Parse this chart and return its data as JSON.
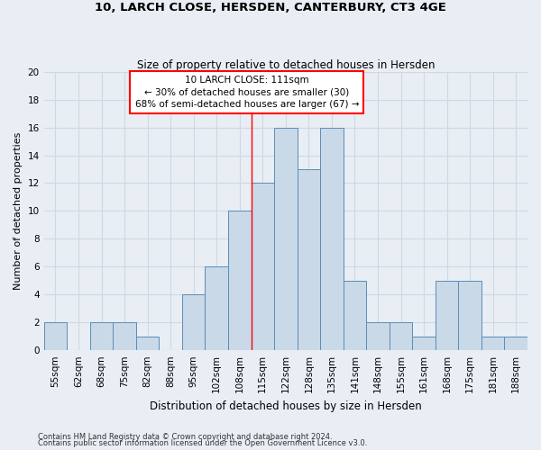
{
  "title1": "10, LARCH CLOSE, HERSDEN, CANTERBURY, CT3 4GE",
  "title2": "Size of property relative to detached houses in Hersden",
  "xlabel": "Distribution of detached houses by size in Hersden",
  "ylabel": "Number of detached properties",
  "footer1": "Contains HM Land Registry data © Crown copyright and database right 2024.",
  "footer2": "Contains public sector information licensed under the Open Government Licence v3.0.",
  "bin_labels": [
    "55sqm",
    "62sqm",
    "68sqm",
    "75sqm",
    "82sqm",
    "88sqm",
    "95sqm",
    "102sqm",
    "108sqm",
    "115sqm",
    "122sqm",
    "128sqm",
    "135sqm",
    "141sqm",
    "148sqm",
    "155sqm",
    "161sqm",
    "168sqm",
    "175sqm",
    "181sqm",
    "188sqm"
  ],
  "bar_values": [
    2,
    0,
    2,
    2,
    1,
    0,
    4,
    6,
    10,
    12,
    16,
    13,
    16,
    5,
    2,
    2,
    1,
    5,
    5,
    1,
    1
  ],
  "bar_color": "#c9d9e8",
  "bar_edgecolor": "#5b8db8",
  "ylim": [
    0,
    20
  ],
  "yticks": [
    0,
    2,
    4,
    6,
    8,
    10,
    12,
    14,
    16,
    18,
    20
  ],
  "annotation_text1": "10 LARCH CLOSE: 111sqm",
  "annotation_text2": "← 30% of detached houses are smaller (30)",
  "annotation_text3": "68% of semi-detached houses are larger (67) →",
  "annotation_box_color": "white",
  "annotation_box_edgecolor": "red",
  "line_color": "red",
  "grid_color": "#d0d8e4",
  "background_color": "#e8eef4",
  "title1_fontsize": 9.5,
  "title2_fontsize": 8.5,
  "ylabel_fontsize": 8,
  "xlabel_fontsize": 8.5,
  "tick_fontsize": 7.5
}
